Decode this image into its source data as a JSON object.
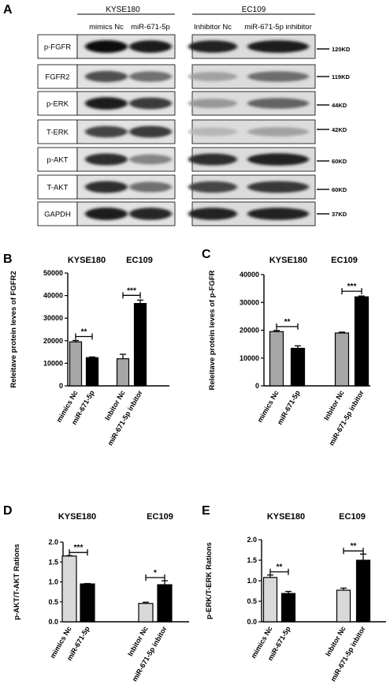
{
  "panel_a": {
    "letter": "A",
    "left_group": "KYSE180",
    "right_group": "EC109",
    "left_lanes": [
      "mimics Nc",
      "miR-671-5p"
    ],
    "right_lanes": [
      "Inhibitor Nc",
      "miR-671-5p inhibitor"
    ],
    "rows": [
      {
        "label": "p-FGFR",
        "marker": "120KD"
      },
      {
        "label": "FGFR2",
        "marker": "119KD"
      },
      {
        "label": "p-ERK",
        "marker": "44KD"
      },
      {
        "label": "T-ERK",
        "marker": "42KD"
      },
      {
        "label": "p-AKT",
        "marker": "60KD"
      },
      {
        "label": "T-AKT",
        "marker": "60KD"
      },
      {
        "label": "GAPDH",
        "marker": "37KD"
      }
    ],
    "band_intensity": {
      "left": [
        [
          1.0,
          0.95
        ],
        [
          0.7,
          0.55
        ],
        [
          0.95,
          0.8
        ],
        [
          0.75,
          0.8
        ],
        [
          0.85,
          0.45
        ],
        [
          0.85,
          0.55
        ],
        [
          0.95,
          0.9
        ]
      ],
      "right": [
        [
          0.9,
          0.95
        ],
        [
          0.3,
          0.55
        ],
        [
          0.35,
          0.6
        ],
        [
          0.2,
          0.3
        ],
        [
          0.85,
          0.9
        ],
        [
          0.75,
          0.8
        ],
        [
          0.9,
          0.9
        ]
      ]
    }
  },
  "chart_data": [
    {
      "panel": "B",
      "type": "bar",
      "group_labels": [
        "KYSE180",
        "EC109"
      ],
      "categories": [
        "mimics Nc",
        "miR-671-5p",
        "Inbitor Nc",
        "miR-671-5p inbitor"
      ],
      "values": [
        19500,
        12500,
        12000,
        36500
      ],
      "errors": [
        600,
        300,
        2000,
        1500
      ],
      "colors": [
        "#a6a6a6",
        "#000000",
        "#a6a6a6",
        "#000000"
      ],
      "ylabel": "Releitave protein leves of FGFR2",
      "ylim": [
        0,
        50000
      ],
      "yticks": [
        "0",
        "10000",
        "20000",
        "30000",
        "40000",
        "50000"
      ],
      "significance": [
        {
          "pair": [
            0,
            1
          ],
          "label": "**"
        },
        {
          "pair": [
            2,
            3
          ],
          "label": "***"
        }
      ]
    },
    {
      "panel": "C",
      "type": "bar",
      "group_labels": [
        "KYSE180",
        "EC109"
      ],
      "categories": [
        "mimics Nc",
        "miR-671-5p",
        "Inbitor Nc",
        "miR-671-5p inbitor"
      ],
      "values": [
        19500,
        13500,
        19000,
        32000
      ],
      "errors": [
        400,
        900,
        300,
        300
      ],
      "colors": [
        "#a6a6a6",
        "#000000",
        "#a6a6a6",
        "#000000"
      ],
      "ylabel": "Releitave protein leves of p-FGFR",
      "ylim": [
        0,
        40000
      ],
      "yticks": [
        "0",
        "10000",
        "20000",
        "30000",
        "40000"
      ],
      "significance": [
        {
          "pair": [
            0,
            1
          ],
          "label": "**"
        },
        {
          "pair": [
            2,
            3
          ],
          "label": "***"
        }
      ]
    },
    {
      "panel": "D",
      "type": "bar",
      "group_labels": [
        "KYSE180",
        "EC109"
      ],
      "categories": [
        "mimics Nc",
        "miR-671-5p",
        "Inbitor Nc",
        "miR-671-5p inbitor"
      ],
      "values": [
        1.65,
        0.95,
        0.46,
        0.93
      ],
      "errors": [
        0.01,
        0.01,
        0.03,
        0.1
      ],
      "colors": [
        "#d9d9d9",
        "#000000",
        "#d9d9d9",
        "#000000"
      ],
      "ylabel": "p-AKT/T-AKT Rations",
      "ylim": [
        0,
        2.0
      ],
      "yticks": [
        "0.0",
        "0.5",
        "1.0",
        "1.5",
        "2.0"
      ],
      "significance": [
        {
          "pair": [
            0,
            1
          ],
          "label": "***"
        },
        {
          "pair": [
            2,
            3
          ],
          "label": "*"
        }
      ]
    },
    {
      "panel": "E",
      "type": "bar",
      "group_labels": [
        "KYSE180",
        "EC109"
      ],
      "categories": [
        "mimics Nc",
        "miR-671-5p",
        "Inbitor Nc",
        "miR-671-5p inbitor"
      ],
      "values": [
        1.08,
        0.69,
        0.77,
        1.5
      ],
      "errors": [
        0.06,
        0.05,
        0.05,
        0.15
      ],
      "colors": [
        "#d9d9d9",
        "#000000",
        "#d9d9d9",
        "#000000"
      ],
      "ylabel": "p-ERK/T-ERK Rations",
      "ylim": [
        0,
        2.0
      ],
      "yticks": [
        "0.0",
        "0.5",
        "1.0",
        "1.5",
        "2.0"
      ],
      "significance": [
        {
          "pair": [
            0,
            1
          ],
          "label": "**"
        },
        {
          "pair": [
            2,
            3
          ],
          "label": "**"
        }
      ]
    }
  ]
}
